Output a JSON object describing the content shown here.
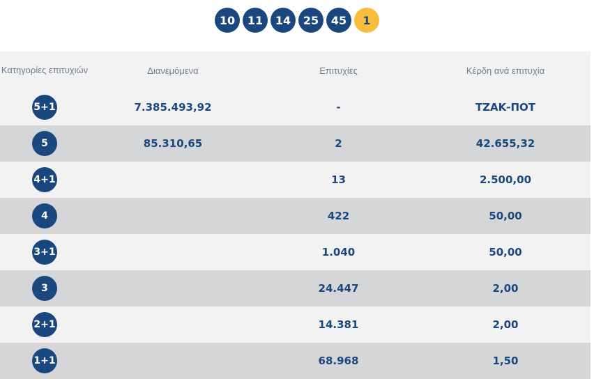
{
  "draw": {
    "numbers": [
      "10",
      "11",
      "14",
      "25",
      "45"
    ],
    "joker": "1"
  },
  "table": {
    "headers": {
      "category": "Κατηγορίες επιτυχιών",
      "distributed": "Διανεμόμενα",
      "winners": "Επιτυχίες",
      "prize": "Κέρδη ανά επιτυχία"
    },
    "rows": [
      {
        "category": "5+1",
        "distributed": "7.385.493,92",
        "winners": "-",
        "prize": "ΤΖΑΚ-ΠΟΤ"
      },
      {
        "category": "5",
        "distributed": "85.310,65",
        "winners": "2",
        "prize": "42.655,32"
      },
      {
        "category": "4+1",
        "distributed": "",
        "winners": "13",
        "prize": "2.500,00"
      },
      {
        "category": "4",
        "distributed": "",
        "winners": "422",
        "prize": "50,00"
      },
      {
        "category": "3+1",
        "distributed": "",
        "winners": "1.040",
        "prize": "50,00"
      },
      {
        "category": "3",
        "distributed": "",
        "winners": "24.447",
        "prize": "2,00"
      },
      {
        "category": "2+1",
        "distributed": "",
        "winners": "14.381",
        "prize": "2,00"
      },
      {
        "category": "1+1",
        "distributed": "",
        "winners": "68.968",
        "prize": "1,50"
      }
    ]
  },
  "colors": {
    "primary": "#1b477f",
    "joker": "#f7bd3b",
    "row_light": "#f2f2f3",
    "row_dark": "#d5d6d8",
    "header_text": "#6e7d8e"
  }
}
